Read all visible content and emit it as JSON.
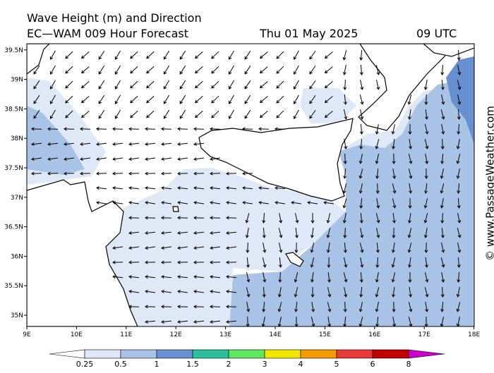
{
  "header": {
    "title": "Wave Height (m) and Direction",
    "model": "EC—WAM 009 Hour Forecast",
    "date": "Thu 01 May 2025",
    "time": "09 UTC"
  },
  "map": {
    "lon_labels": [
      "9E",
      "10E",
      "11E",
      "12E",
      "13E",
      "14E",
      "15E",
      "16E",
      "17E",
      "18E"
    ],
    "lat_labels": [
      "35N",
      "35.5N",
      "36N",
      "36.5N",
      "37N",
      "37.5N",
      "38N",
      "38.5N",
      "39N",
      "39.5N"
    ]
  },
  "colorbar": {
    "levels": [
      0.25,
      0.5,
      1,
      1.5,
      2,
      3,
      4,
      5,
      6,
      8
    ],
    "colors": [
      "#ffffff",
      "#dfe8f6",
      "#a9c3e6",
      "#6690d0",
      "#2cbf9e",
      "#5fe85f",
      "#f2e600",
      "#f59a00",
      "#e83a3a",
      "#c00000",
      "#c800c8"
    ]
  },
  "watermark": "© www.PassageWeather.com"
}
